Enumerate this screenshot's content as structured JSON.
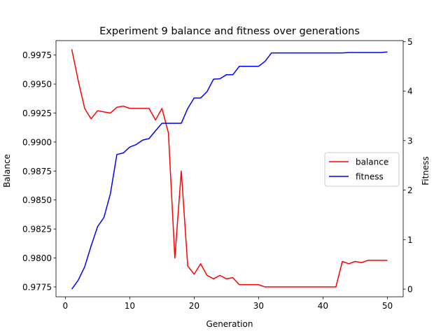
{
  "chart_data": {
    "type": "line",
    "title": "Experiment 9 balance and fitness over generations",
    "xlabel": "Generation",
    "ylabel_left": "Balance",
    "ylabel_right": "Fitness",
    "xlim": [
      -1.45,
      52.45
    ],
    "ylim_left": [
      0.97665,
      0.99875
    ],
    "ylim_right": [
      -0.155,
      5.02
    ],
    "xticks": [
      0,
      10,
      20,
      30,
      40,
      50
    ],
    "xtick_labels": [
      "0",
      "10",
      "20",
      "30",
      "40",
      "50"
    ],
    "yticks_left": [
      0.9775,
      0.98,
      0.9825,
      0.985,
      0.9875,
      0.99,
      0.9925,
      0.995,
      0.9975
    ],
    "ytick_labels_left": [
      "0.9775",
      "0.9800",
      "0.9825",
      "0.9850",
      "0.9875",
      "0.9900",
      "0.9925",
      "0.9950",
      "0.9975"
    ],
    "yticks_right": [
      0,
      1,
      2,
      3,
      4,
      5
    ],
    "ytick_labels_right": [
      "0",
      "1",
      "2",
      "3",
      "4",
      "5"
    ],
    "x": [
      1,
      2,
      3,
      4,
      5,
      6,
      7,
      8,
      9,
      10,
      11,
      12,
      13,
      14,
      15,
      16,
      17,
      18,
      19,
      20,
      21,
      22,
      23,
      24,
      25,
      26,
      27,
      28,
      29,
      30,
      31,
      32,
      33,
      34,
      35,
      36,
      37,
      38,
      39,
      40,
      41,
      42,
      43,
      44,
      45,
      46,
      47,
      48,
      49,
      50
    ],
    "legend_position": "center-right",
    "grid": false,
    "series": [
      {
        "name": "balance",
        "axis": "left",
        "color": "#ff0000",
        "values": [
          0.998,
          0.9953,
          0.9929,
          0.992,
          0.9927,
          0.9926,
          0.9925,
          0.993,
          0.9931,
          0.9929,
          0.9929,
          0.9929,
          0.9929,
          0.9919,
          0.9929,
          0.9908,
          0.98,
          0.9875,
          0.9793,
          0.9786,
          0.9795,
          0.9785,
          0.9782,
          0.9785,
          0.9782,
          0.9783,
          0.9777,
          0.9777,
          0.9777,
          0.9777,
          0.9775,
          0.9775,
          0.9775,
          0.9775,
          0.9775,
          0.9775,
          0.9775,
          0.9775,
          0.9775,
          0.9775,
          0.9775,
          0.9775,
          0.9797,
          0.9795,
          0.9797,
          0.9796,
          0.9798,
          0.9798,
          0.9798,
          0.9798
        ]
      },
      {
        "name": "fitness",
        "axis": "right",
        "color": "#0000ff",
        "values": [
          0.0,
          0.18,
          0.45,
          0.87,
          1.26,
          1.45,
          1.93,
          2.72,
          2.75,
          2.87,
          2.92,
          3.01,
          3.04,
          3.2,
          3.35,
          3.35,
          3.35,
          3.35,
          3.65,
          3.86,
          3.86,
          3.99,
          4.24,
          4.25,
          4.33,
          4.33,
          4.5,
          4.5,
          4.5,
          4.5,
          4.6,
          4.77,
          4.77,
          4.77,
          4.77,
          4.77,
          4.77,
          4.77,
          4.77,
          4.77,
          4.77,
          4.77,
          4.77,
          4.78,
          4.78,
          4.78,
          4.78,
          4.78,
          4.78,
          4.79
        ]
      }
    ]
  }
}
